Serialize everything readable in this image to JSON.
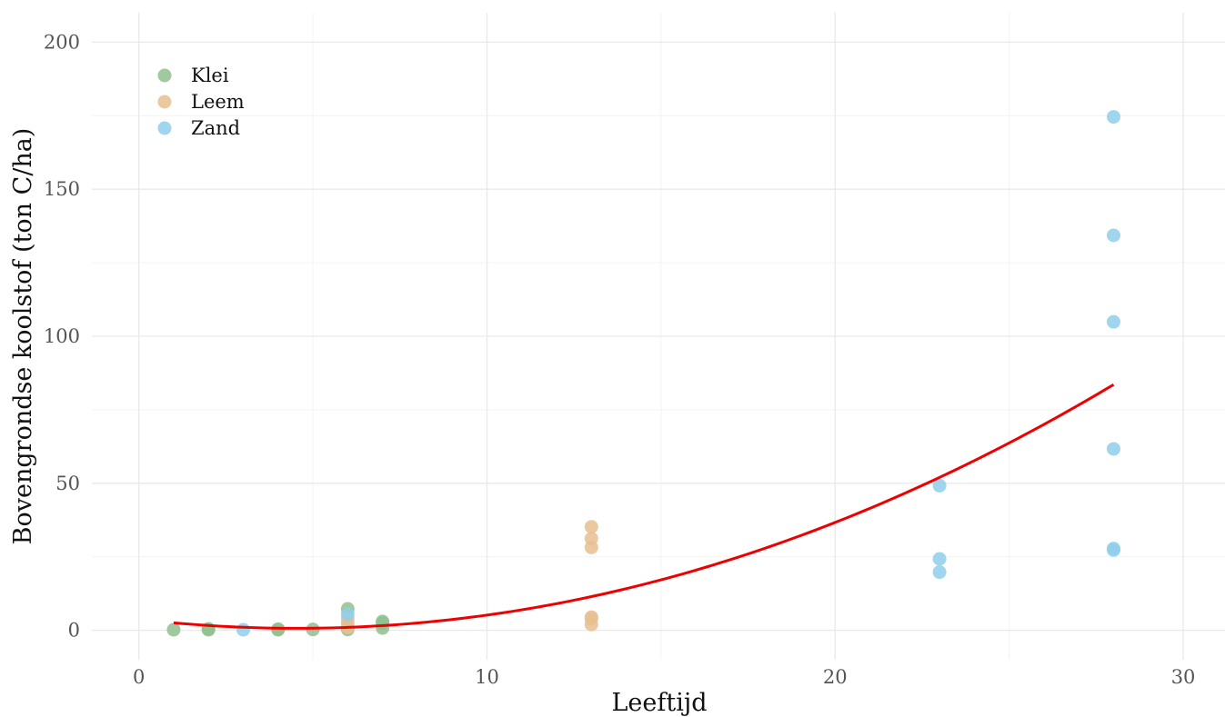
{
  "chart_data": {
    "type": "scatter",
    "xlabel": "Leeftijd",
    "ylabel": "Bovengrondse koolstof (ton C/ha)",
    "xlim": [
      -1.35,
      31.2
    ],
    "ylim": [
      -10,
      210
    ],
    "x_ticks": [
      0,
      10,
      20,
      30
    ],
    "y_ticks": [
      0,
      50,
      100,
      150,
      200
    ],
    "x_tick_labels": [
      "0",
      "10",
      "20",
      "30"
    ],
    "y_tick_labels": [
      "0",
      "50",
      "100",
      "150",
      "200"
    ],
    "grid": true,
    "legend_position": "top-left",
    "series": [
      {
        "name": "Klei",
        "color": "#8fbf8f",
        "points": [
          {
            "x": 1,
            "y": 0.2
          },
          {
            "x": 2,
            "y": 0.2
          },
          {
            "x": 2,
            "y": 0.5
          },
          {
            "x": 4,
            "y": 0.2
          },
          {
            "x": 4,
            "y": 0.4
          },
          {
            "x": 5,
            "y": 0.3
          },
          {
            "x": 6,
            "y": 0.3
          },
          {
            "x": 6,
            "y": 7.3
          },
          {
            "x": 7,
            "y": 0.8
          },
          {
            "x": 7,
            "y": 2.5
          },
          {
            "x": 7,
            "y": 3.0
          }
        ]
      },
      {
        "name": "Leem",
        "color": "#e6c08f",
        "points": [
          {
            "x": 6,
            "y": 1.0
          },
          {
            "x": 6,
            "y": 2.5
          },
          {
            "x": 6,
            "y": 4.0
          },
          {
            "x": 13,
            "y": 2.0
          },
          {
            "x": 13,
            "y": 4.0
          },
          {
            "x": 13,
            "y": 4.5
          },
          {
            "x": 13,
            "y": 28.2
          },
          {
            "x": 13,
            "y": 31.2
          },
          {
            "x": 13,
            "y": 35.2
          }
        ]
      },
      {
        "name": "Zand",
        "color": "#8ecfeb",
        "points": [
          {
            "x": 3,
            "y": 0.2
          },
          {
            "x": 6,
            "y": 5.5
          },
          {
            "x": 23,
            "y": 19.8
          },
          {
            "x": 23,
            "y": 24.3
          },
          {
            "x": 23,
            "y": 49.2
          },
          {
            "x": 28,
            "y": 27.3
          },
          {
            "x": 28,
            "y": 27.8
          },
          {
            "x": 28,
            "y": 61.7
          },
          {
            "x": 28,
            "y": 104.9
          },
          {
            "x": 28,
            "y": 134.3
          },
          {
            "x": 28,
            "y": 174.6
          }
        ]
      }
    ],
    "fit_line": {
      "type": "quadratic",
      "color": "#ee0000",
      "x_range": [
        1,
        28
      ],
      "coefficients": {
        "a": 0.1505,
        "b": -1.365,
        "c": 3.78
      }
    }
  }
}
